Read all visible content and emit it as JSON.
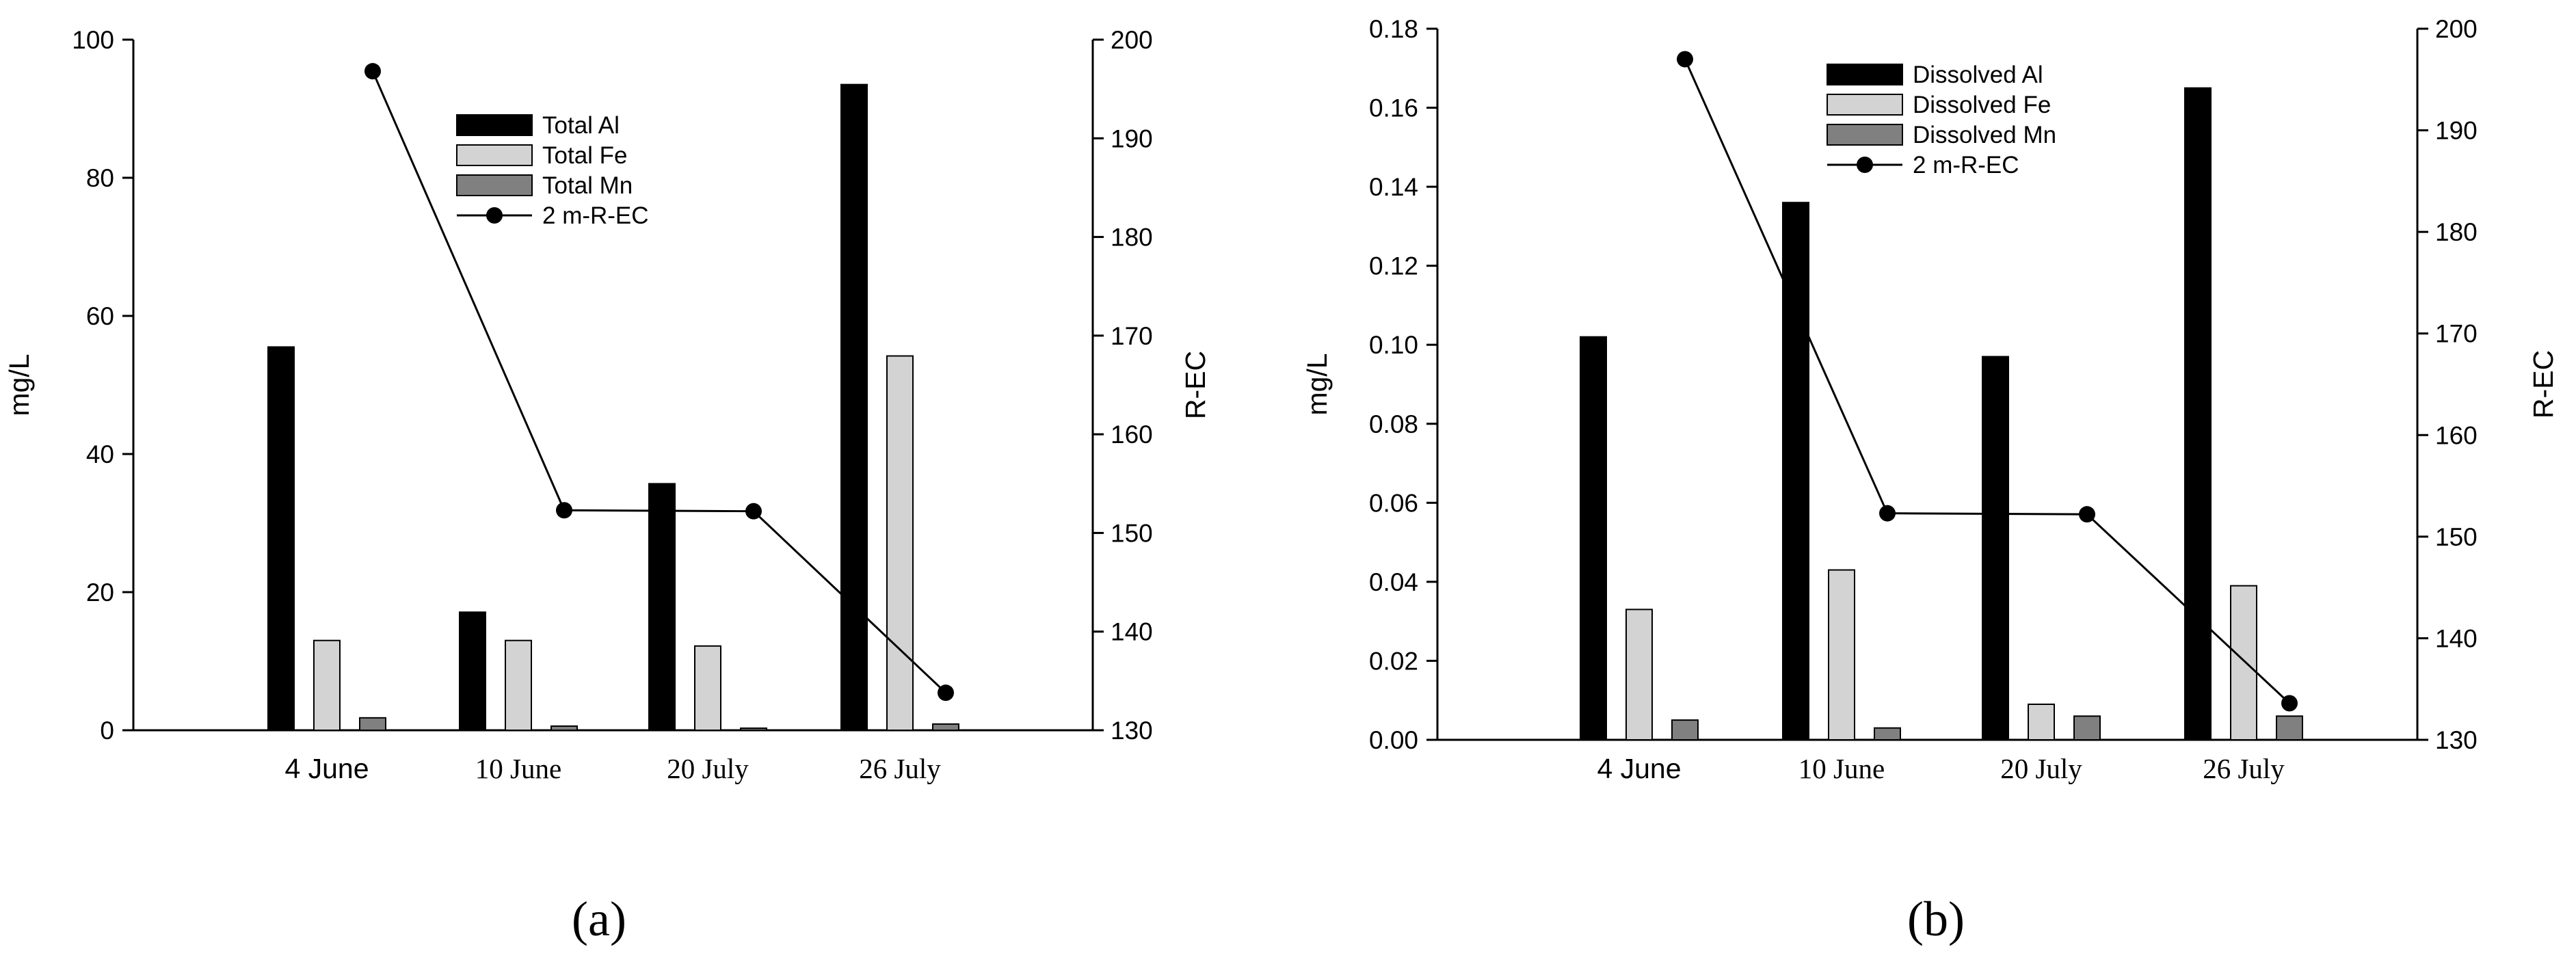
{
  "chart_data": [
    {
      "panel_label": "(a)",
      "type": "bar",
      "categories": [
        "4 June",
        "10 June",
        "20 July",
        "26 July"
      ],
      "category_fonts": [
        "sans",
        "serif",
        "serif",
        "serif"
      ],
      "ylabel": "mg/L",
      "y2label": "R-EC",
      "ylim": [
        0,
        100
      ],
      "yticks": [
        "0",
        "20",
        "40",
        "60",
        "80",
        "100"
      ],
      "y2lim": [
        130,
        200
      ],
      "y2ticks": [
        "130",
        "140",
        "150",
        "160",
        "170",
        "180",
        "190",
        "200"
      ],
      "series": [
        {
          "name": "Total Al",
          "color": "#000000",
          "values": [
            55.5,
            17.1,
            35.7,
            93.5
          ]
        },
        {
          "name": "Total Fe",
          "color": "#d3d3d3",
          "values": [
            13.0,
            13.0,
            12.2,
            54.2
          ]
        },
        {
          "name": "Total Mn",
          "color": "#808080",
          "values": [
            1.8,
            0.6,
            0.3,
            0.9
          ]
        }
      ],
      "line_series": {
        "name": "2 m-R-EC",
        "axis": "right",
        "values": [
          196.8,
          152.3,
          152.2,
          133.8
        ]
      },
      "legend_position": "upper-center"
    },
    {
      "panel_label": "(b)",
      "type": "bar",
      "categories": [
        "4 June",
        "10 June",
        "20 July",
        "26 July"
      ],
      "category_fonts": [
        "sans",
        "serif",
        "serif",
        "serif"
      ],
      "ylabel": "mg/L",
      "y2label": "R-EC",
      "ylim": [
        0,
        0.18
      ],
      "yticks": [
        "0.00",
        "0.02",
        "0.04",
        "0.06",
        "0.08",
        "0.10",
        "0.12",
        "0.14",
        "0.16",
        "0.18"
      ],
      "y2lim": [
        130,
        200
      ],
      "y2ticks": [
        "130",
        "140",
        "150",
        "160",
        "170",
        "180",
        "190",
        "200"
      ],
      "series": [
        {
          "name": "Dissolved Al",
          "color": "#000000",
          "values": [
            0.102,
            0.136,
            0.097,
            0.165
          ]
        },
        {
          "name": "Dissolved Fe",
          "color": "#d3d3d3",
          "values": [
            0.033,
            0.043,
            0.009,
            0.039
          ]
        },
        {
          "name": "Dissolved Mn",
          "color": "#808080",
          "values": [
            0.005,
            0.003,
            0.006,
            0.006
          ]
        }
      ],
      "line_series": {
        "name": "2 m-R-EC",
        "axis": "right",
        "values": [
          197.0,
          152.3,
          152.2,
          133.6
        ]
      },
      "legend_position": "upper-center"
    }
  ]
}
